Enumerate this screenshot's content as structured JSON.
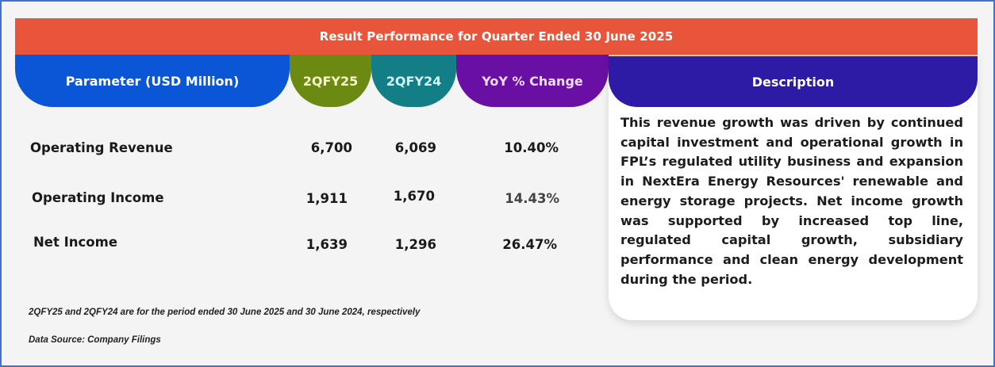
{
  "title": "Result Performance for Quarter Ended 30 June 2025",
  "headers": {
    "parameter": "Parameter (USD Million)",
    "q_current": "2QFY25",
    "q_prior": "2QFY24",
    "yoy": "YoY % Change",
    "description": "Description"
  },
  "rows": [
    {
      "label": "Operating Revenue",
      "q_current": "6,700",
      "q_prior": "6,069",
      "yoy": "10.40%"
    },
    {
      "label": "Operating Income",
      "q_current": "1,911",
      "q_prior": "1,670",
      "yoy": "14.43%"
    },
    {
      "label": "Net Income",
      "q_current": "1,639",
      "q_prior": "1,296",
      "yoy": "26.47%"
    }
  ],
  "description": "This revenue growth was driven by continued capital investment and operational growth in FPL’s regulated utility business and expansion in NextEra Energy Resources' renewable and energy storage projects. Net income growth was supported by increased top line, regulated capital growth, subsidiary performance and clean energy development during the period.",
  "footnotes": {
    "period_note": "2QFY25 and 2QFY24 are for the period ended 30 June 2025 and 30 June 2024, respectively",
    "source": "Data Source: Company Filings"
  },
  "colors": {
    "title_bar": "#e8553a",
    "parameter_header": "#0a56d6",
    "q_current_header": "#6c8a11",
    "q_prior_header": "#137e86",
    "yoy_header": "#6a0fa3",
    "description_header": "#2d1ba6",
    "frame_border": "#4472c4"
  }
}
